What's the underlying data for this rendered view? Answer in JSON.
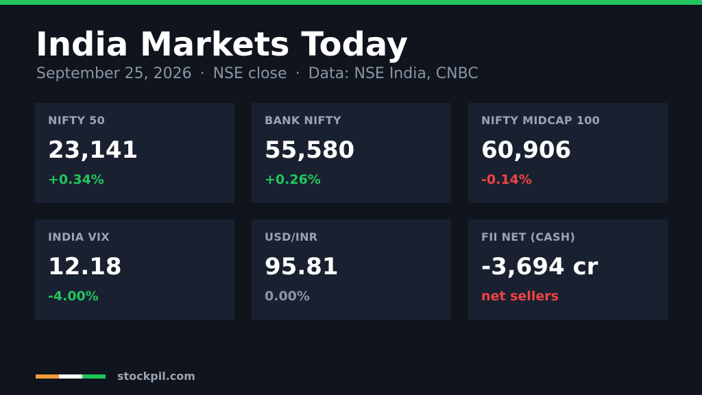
{
  "header": {
    "title": "India Markets Today",
    "date": "September 25, 2026",
    "separator": "·",
    "session": "NSE close",
    "source": "Data: NSE India, CNBC"
  },
  "colors": {
    "accent_bar": "#22c55e",
    "positive": "#22c55e",
    "negative": "#ef4444",
    "neutral": "#8b95a5",
    "flag_saffron": "#f59a3b",
    "flag_white": "#ffffff",
    "flag_green": "#22c55e"
  },
  "cards": [
    {
      "label": "NIFTY 50",
      "value": "23,141",
      "change": "+0.34%",
      "tone": "positive"
    },
    {
      "label": "BANK NIFTY",
      "value": "55,580",
      "change": "+0.26%",
      "tone": "positive"
    },
    {
      "label": "NIFTY MIDCAP 100",
      "value": "60,906",
      "change": "-0.14%",
      "tone": "negative"
    },
    {
      "label": "INDIA VIX",
      "value": "12.18",
      "change": "-4.00%",
      "tone": "positive"
    },
    {
      "label": "USD/INR",
      "value": "95.81",
      "change": "0.00%",
      "tone": "neutral"
    },
    {
      "label": "FII NET (CASH)",
      "value": "-3,694 cr",
      "change": "net sellers",
      "tone": "negative"
    }
  ],
  "footer": {
    "brand": "stockpil.com"
  }
}
